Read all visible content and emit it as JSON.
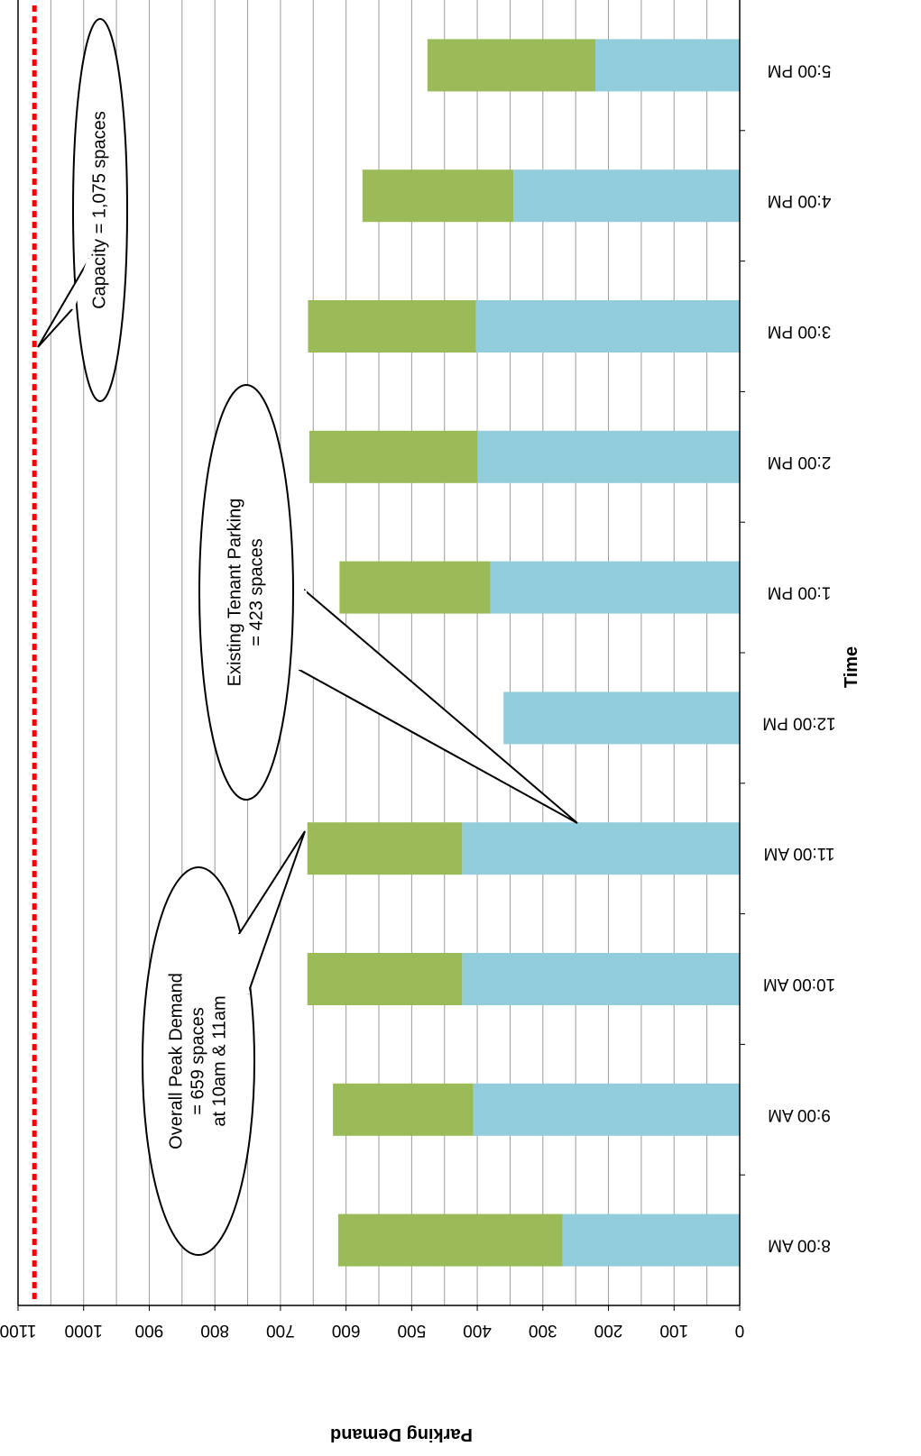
{
  "chart_data": {
    "type": "bar",
    "orientation": "horizontal-rotated",
    "xlabel": "Time",
    "ylabel": "Parking Demand",
    "ylim": [
      0,
      1100
    ],
    "ytick_step": 100,
    "minor_grid_step": 50,
    "grid": true,
    "categories": [
      "8:00 AM",
      "9:00 AM",
      "10:00 AM",
      "11:00 AM",
      "12:00 PM",
      "1:00 PM",
      "2:00 PM",
      "3:00 PM",
      "4:00 PM",
      "5:00 PM"
    ],
    "series": [
      {
        "color": "#92CDDC",
        "values": [
          270,
          406,
          423,
          423,
          360,
          380,
          400,
          402,
          345,
          220
        ]
      },
      {
        "color": "#9BBB59",
        "values": [
          342,
          214,
          236,
          236,
          0,
          230,
          256,
          256,
          230,
          256
        ]
      }
    ],
    "capacity_line": {
      "value": 1075,
      "color": "#FF0000"
    },
    "annotations": [
      {
        "id": "capacity",
        "lines": [
          "Capacity = 1,075 spaces"
        ]
      },
      {
        "id": "tenant",
        "lines": [
          "Existing Tenant Parking",
          "= 423 spaces"
        ]
      },
      {
        "id": "peak",
        "lines": [
          "Overall Peak Demand",
          "= 659 spaces",
          "at 10am & 11am"
        ]
      }
    ]
  }
}
